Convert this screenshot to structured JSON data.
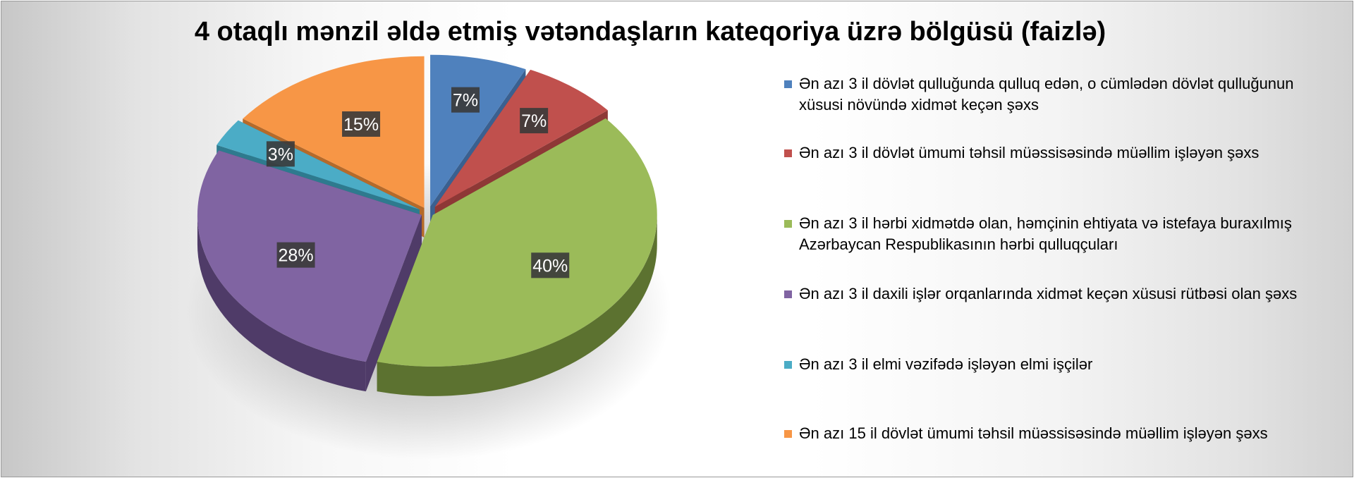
{
  "chart_data": {
    "type": "pie",
    "title": "4 otaqlı mənzil əldə etmiş vətəndaşların kateqoriya üzrə bölgüsü (faizlə)",
    "legend_position": "right",
    "slices": [
      {
        "name": "Ən azı 3 il dövlət qulluğunda qulluq edən, o cümlədən dövlət qulluğunun xüsusi növündə xidmət keçən şəxs",
        "value": 7,
        "label": "7%",
        "color": "#4f81bd",
        "side": "#3a6090"
      },
      {
        "name": "Ən azı 3 il dövlət ümumi təhsil müəssisəsində müəllim işləyən şəxs",
        "value": 7,
        "label": "7%",
        "color": "#c0504d",
        "side": "#8e3836"
      },
      {
        "name": "Ən azı 3 il hərbi xidmətdə olan, həmçinin ehtiyata və istefaya buraxılmış Azərbaycan Respublikasının hərbi qulluqçuları",
        "value": 40,
        "label": "40%",
        "color": "#9bbb59",
        "side": "#5c7230"
      },
      {
        "name": "Ən azı 3 il daxili işlər orqanlarında xidmət keçən xüsusi rütbəsi olan şəxs",
        "value": 28,
        "label": "28%",
        "color": "#8064a2",
        "side": "#4f3b68"
      },
      {
        "name": "Ən azı 3 il elmi vəzifədə işləyən elmi işçilər",
        "value": 3,
        "label": "3%",
        "color": "#4bacc6",
        "side": "#2e7a8e"
      },
      {
        "name": "Ən azı 15 il dövlət ümumi təhsil müəssisəsində müəllim işləyən şəxs",
        "value": 15,
        "label": "15%",
        "color": "#f79646",
        "side": "#b56a2a"
      }
    ]
  }
}
